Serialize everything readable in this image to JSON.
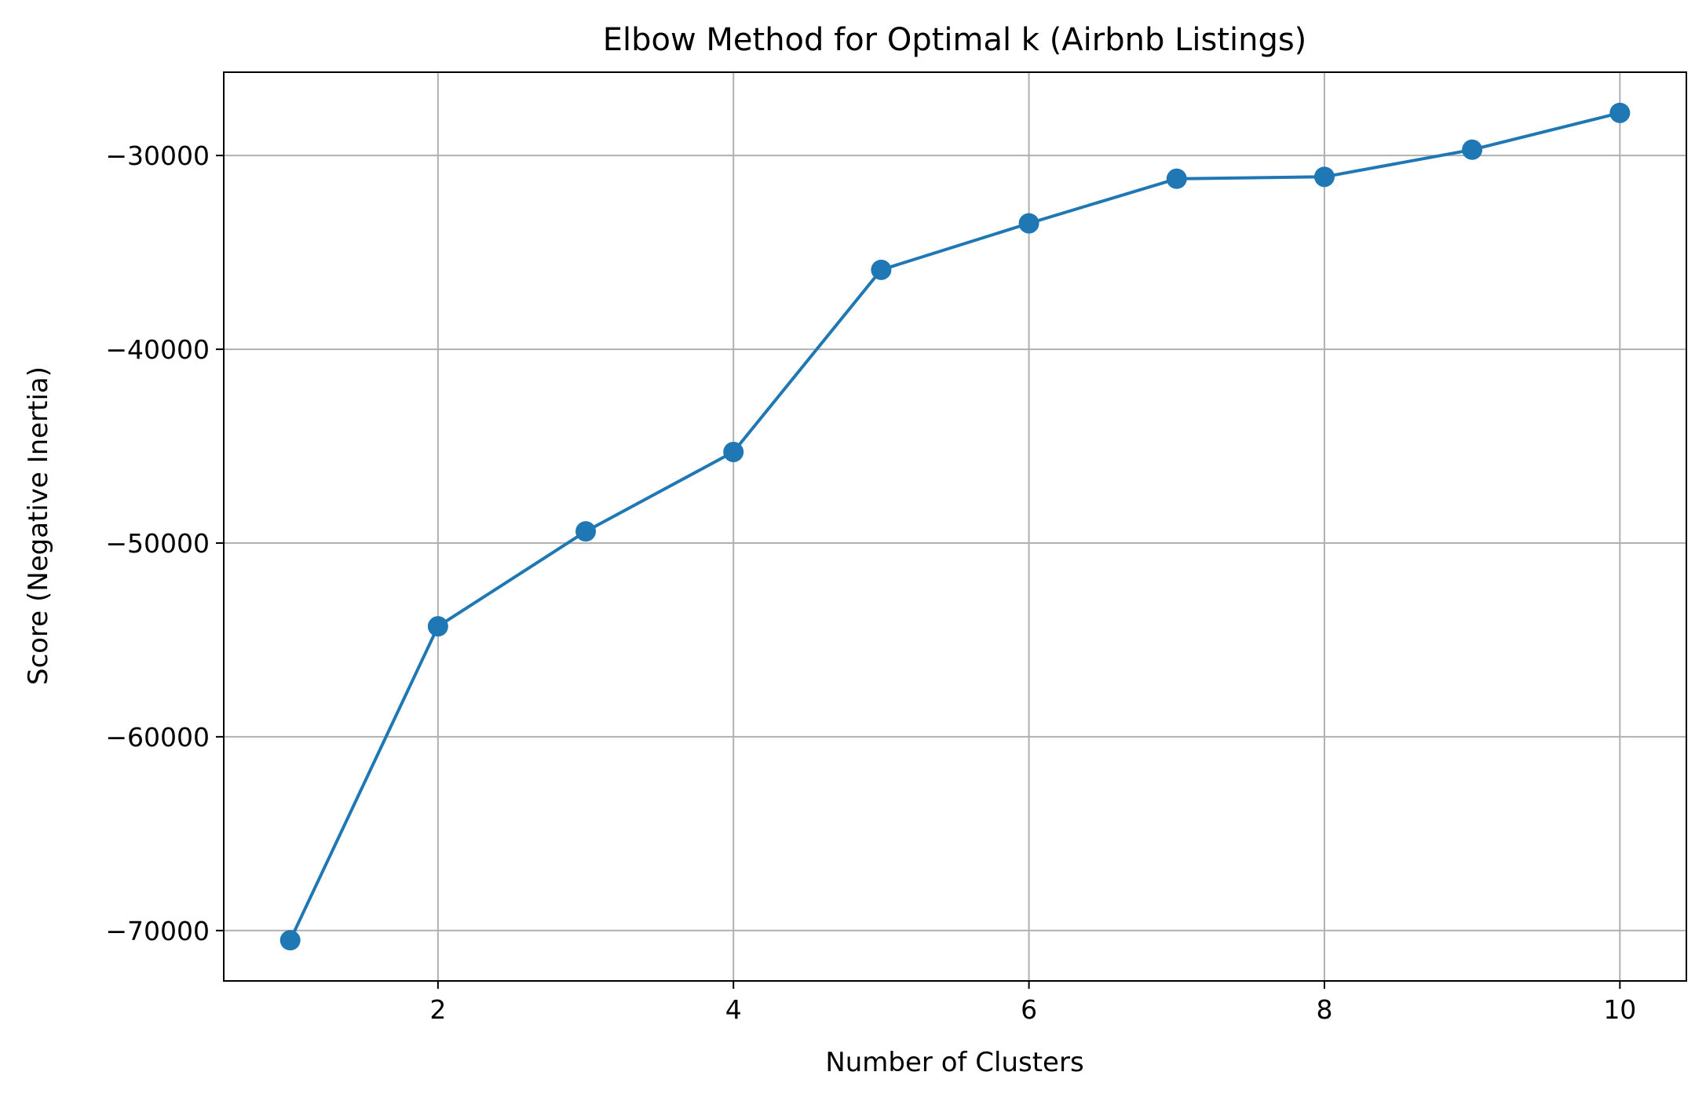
{
  "chart_data": {
    "type": "line",
    "title": "Elbow Method for Optimal k (Airbnb Listings)",
    "xlabel": "Number of Clusters",
    "ylabel": "Score (Negative Inertia)",
    "xlim": [
      0.55,
      10.45
    ],
    "ylim": [
      -72600,
      -25700
    ],
    "x_ticks": [
      2,
      4,
      6,
      8,
      10
    ],
    "y_ticks": [
      -70000,
      -60000,
      -50000,
      -40000,
      -30000
    ],
    "x_tick_labels": [
      "2",
      "4",
      "6",
      "8",
      "10"
    ],
    "y_tick_labels": [
      "−70000",
      "−60000",
      "−50000",
      "−40000",
      "−30000"
    ],
    "grid": true,
    "marker": "circle",
    "series": [
      {
        "color": "#1f77b4",
        "x": [
          1,
          2,
          3,
          4,
          5,
          6,
          7,
          8,
          9,
          10
        ],
        "values": [
          -70500,
          -54300,
          -49400,
          -45300,
          -35900,
          -33500,
          -31200,
          -31100,
          -29700,
          -27800
        ]
      }
    ]
  }
}
